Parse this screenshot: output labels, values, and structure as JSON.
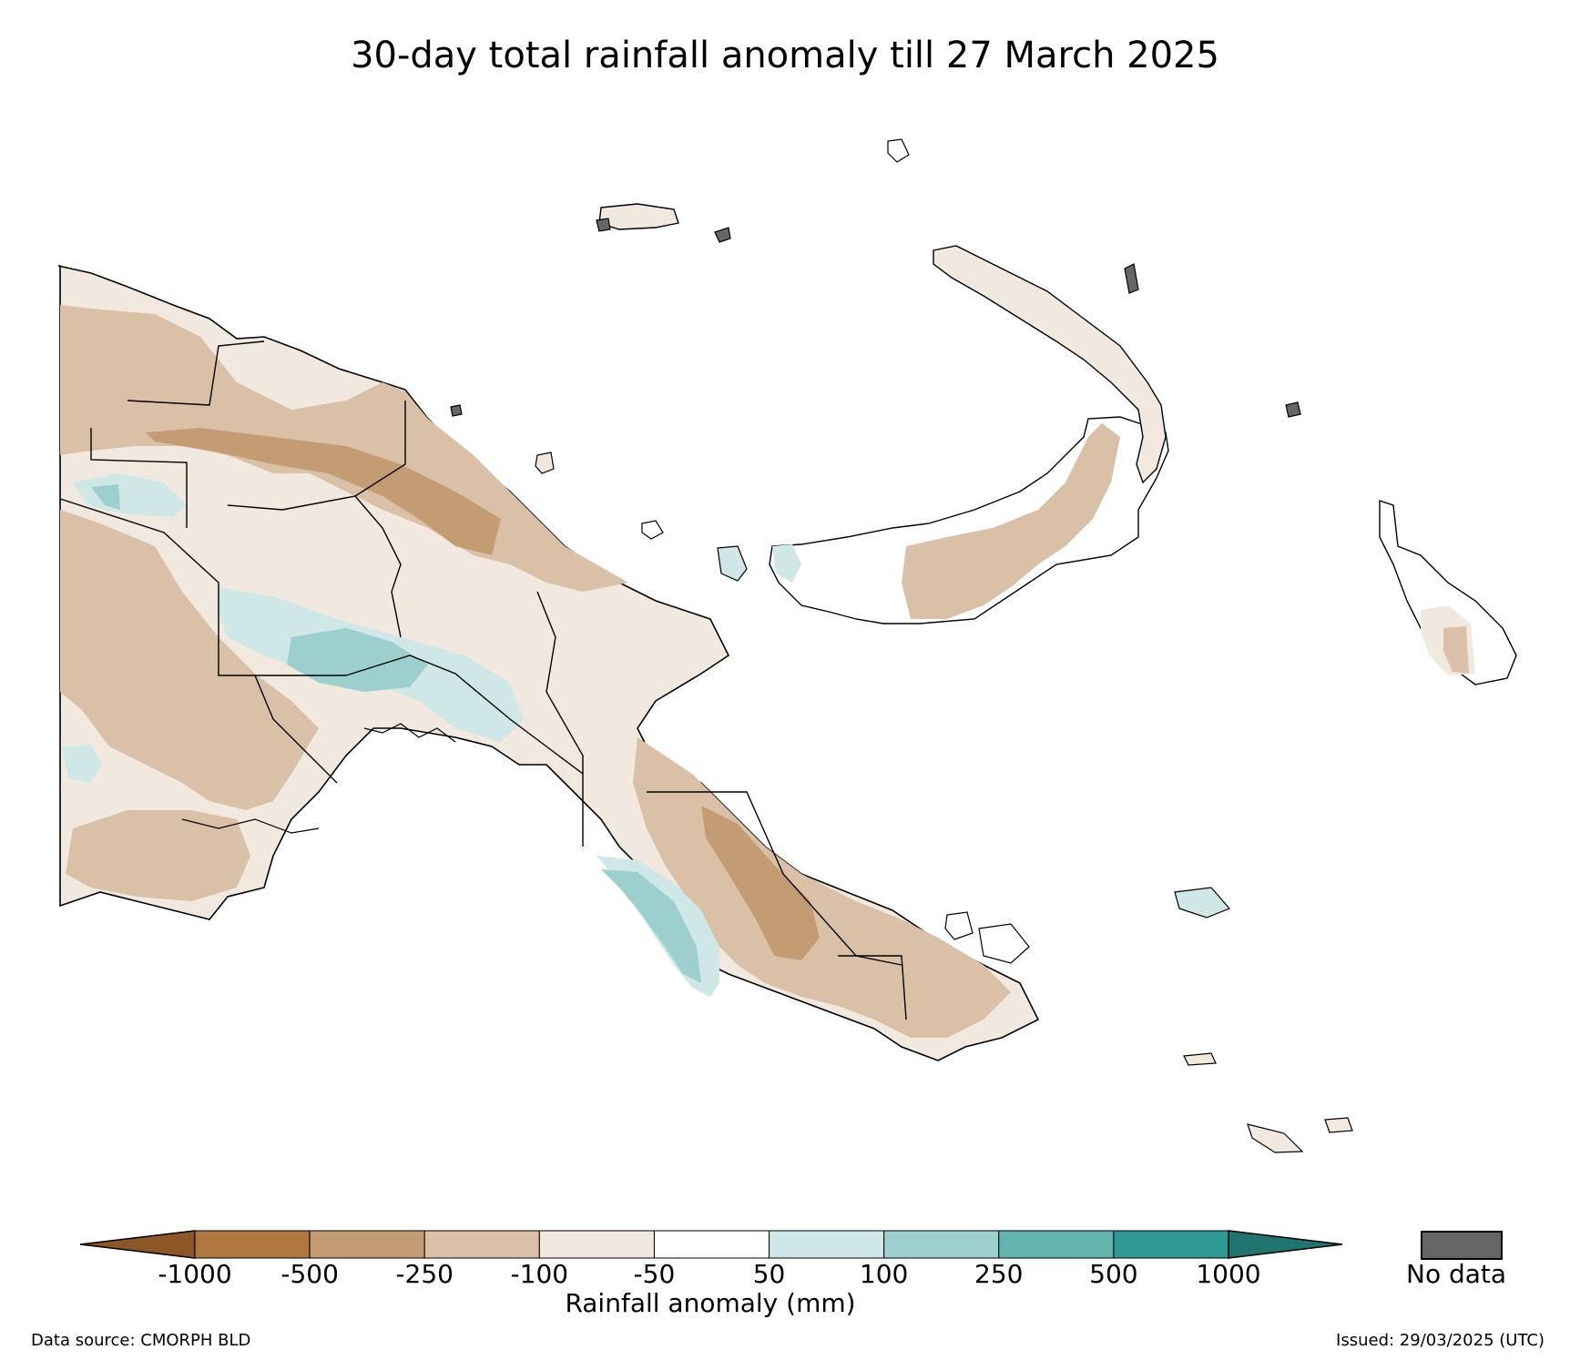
{
  "title": "30-day total rainfall anomaly till 27 March 2025",
  "map": {
    "region_name": "",
    "fill_default": "#ffffff",
    "outline_color": "#000000"
  },
  "legend": {
    "label": "Rainfall anomaly (mm)",
    "ticks": [
      "-1000",
      "-500",
      "-250",
      "-100",
      "-50",
      "50",
      "100",
      "250",
      "500",
      "1000"
    ],
    "colors": [
      "#8c5626",
      "#b07840",
      "#c49c74",
      "#d9c0a6",
      "#f1e8df",
      "#ffffff",
      "#cfe7e6",
      "#9ccfcd",
      "#63b3ae",
      "#2f9994",
      "#1f7470"
    ],
    "extend": "both",
    "no_data_label": "No data",
    "no_data_color": "#666666"
  },
  "footer": {
    "source": "Data source: CMORPH BLD",
    "issued": "Issued: 29/03/2025 (UTC)"
  }
}
